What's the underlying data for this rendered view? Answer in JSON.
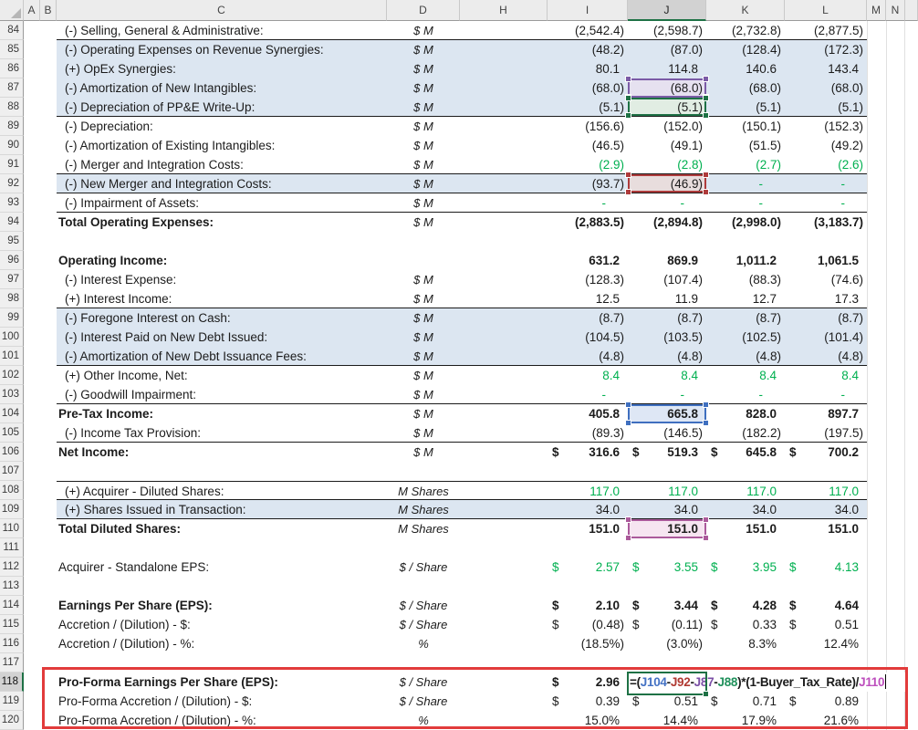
{
  "columns": [
    "A",
    "B",
    "C",
    "D",
    "H",
    "I",
    "J",
    "K",
    "L",
    "M",
    "N"
  ],
  "selected_column": "J",
  "active_row": "118",
  "rows": [
    {
      "num": "84",
      "label": "(-) Selling, General & Administrative:",
      "unit": "$ M",
      "values": [
        "(2,542.4)",
        "(2,598.7)",
        "(2,732.8)",
        "(2,877.5)"
      ],
      "bb": true
    },
    {
      "num": "85",
      "label": "(-) Operating Expenses on Revenue Synergies:",
      "unit": "$ M",
      "values": [
        "(48.2)",
        "(87.0)",
        "(128.4)",
        "(172.3)"
      ],
      "band": true
    },
    {
      "num": "86",
      "label": "(+) OpEx Synergies:",
      "unit": "$ M",
      "values": [
        "80.1",
        "114.8",
        "140.6",
        "143.4"
      ],
      "band": true
    },
    {
      "num": "87",
      "label": "(-) Amortization of New Intangibles:",
      "unit": "$ M",
      "values": [
        "(68.0)",
        "(68.0)",
        "(68.0)",
        "(68.0)"
      ],
      "band": true,
      "hl": "purple"
    },
    {
      "num": "88",
      "label": "(-) Depreciation of PP&E Write-Up:",
      "unit": "$ M",
      "values": [
        "(5.1)",
        "(5.1)",
        "(5.1)",
        "(5.1)"
      ],
      "band": true,
      "bb": true,
      "hl": "green"
    },
    {
      "num": "89",
      "label": "(-) Depreciation:",
      "unit": "$ M",
      "values": [
        "(156.6)",
        "(152.0)",
        "(150.1)",
        "(152.3)"
      ]
    },
    {
      "num": "90",
      "label": "(-) Amortization of Existing Intangibles:",
      "unit": "$ M",
      "values": [
        "(46.5)",
        "(49.1)",
        "(51.5)",
        "(49.2)"
      ]
    },
    {
      "num": "91",
      "label": "(-) Merger and Integration Costs:",
      "unit": "$ M",
      "values": [
        "(2.9)",
        "(2.8)",
        "(2.7)",
        "(2.6)"
      ],
      "green": true,
      "bb": true
    },
    {
      "num": "92",
      "label": "(-) New Merger and Integration Costs:",
      "unit": "$ M",
      "values": [
        "(93.7)",
        "(46.9)",
        "-",
        "-"
      ],
      "band": true,
      "bb": true,
      "hl": "red"
    },
    {
      "num": "93",
      "label": "(-) Impairment of Assets:",
      "unit": "$ M",
      "values": [
        "-",
        "-",
        "-",
        "-"
      ],
      "bb": true
    },
    {
      "num": "94",
      "label": "Total Operating Expenses:",
      "unit": "$ M",
      "values": [
        "(2,883.5)",
        "(2,894.8)",
        "(2,998.0)",
        "(3,183.7)"
      ],
      "bold": true
    },
    {
      "num": "95"
    },
    {
      "num": "96",
      "label": "Operating Income:",
      "unit": "",
      "values": [
        "631.2",
        "869.9",
        "1,011.2",
        "1,061.5"
      ],
      "bold": true
    },
    {
      "num": "97",
      "label": "(-) Interest Expense:",
      "unit": "$ M",
      "values": [
        "(128.3)",
        "(107.4)",
        "(88.3)",
        "(74.6)"
      ]
    },
    {
      "num": "98",
      "label": "(+) Interest Income:",
      "unit": "$ M",
      "values": [
        "12.5",
        "11.9",
        "12.7",
        "17.3"
      ],
      "bb": true
    },
    {
      "num": "99",
      "label": "(-) Foregone Interest on Cash:",
      "unit": "$ M",
      "values": [
        "(8.7)",
        "(8.7)",
        "(8.7)",
        "(8.7)"
      ],
      "band": true
    },
    {
      "num": "100",
      "label": "(-) Interest Paid on New Debt Issued:",
      "unit": "$ M",
      "values": [
        "(104.5)",
        "(103.5)",
        "(102.5)",
        "(101.4)"
      ],
      "band": true
    },
    {
      "num": "101",
      "label": "(-) Amortization of New Debt Issuance Fees:",
      "unit": "$ M",
      "values": [
        "(4.8)",
        "(4.8)",
        "(4.8)",
        "(4.8)"
      ],
      "band": true,
      "bb": true
    },
    {
      "num": "102",
      "label": "(+) Other Income, Net:",
      "unit": "$ M",
      "values": [
        "8.4",
        "8.4",
        "8.4",
        "8.4"
      ],
      "green": true
    },
    {
      "num": "103",
      "label": "(-) Goodwill Impairment:",
      "unit": "$ M",
      "values": [
        "-",
        "-",
        "-",
        "-"
      ],
      "bb": true
    },
    {
      "num": "104",
      "label": "Pre-Tax Income:",
      "unit": "$ M",
      "values": [
        "405.8",
        "665.8",
        "828.0",
        "897.7"
      ],
      "bold": true,
      "hl": "blue"
    },
    {
      "num": "105",
      "label": "(-) Income Tax Provision:",
      "unit": "$ M",
      "values": [
        "(89.3)",
        "(146.5)",
        "(182.2)",
        "(197.5)"
      ],
      "bb": true
    },
    {
      "num": "106",
      "label": "Net Income:",
      "unit": "$ M",
      "values": [
        "316.6",
        "519.3",
        "645.8",
        "700.2"
      ],
      "bold": true,
      "currency": true
    },
    {
      "num": "107"
    },
    {
      "num": "108",
      "label": "(+) Acquirer - Diluted Shares:",
      "unit": "M Shares",
      "values": [
        "117.0",
        "117.0",
        "117.0",
        "117.0"
      ],
      "green": true,
      "bt": true,
      "bb": true
    },
    {
      "num": "109",
      "label": "(+) Shares Issued in Transaction:",
      "unit": "M Shares",
      "values": [
        "34.0",
        "34.0",
        "34.0",
        "34.0"
      ],
      "band": true,
      "bb": true
    },
    {
      "num": "110",
      "label": "Total Diluted Shares:",
      "unit": "M Shares",
      "values": [
        "151.0",
        "151.0",
        "151.0",
        "151.0"
      ],
      "bold": true,
      "hl": "plum"
    },
    {
      "num": "111"
    },
    {
      "num": "112",
      "label": "Acquirer - Standalone EPS:",
      "unit": "$ / Share",
      "values": [
        "2.57",
        "3.55",
        "3.95",
        "4.13"
      ],
      "green": true,
      "currency": true
    },
    {
      "num": "113"
    },
    {
      "num": "114",
      "label": "Earnings Per Share (EPS):",
      "unit": "$ / Share",
      "values": [
        "2.10",
        "3.44",
        "4.28",
        "4.64"
      ],
      "bold": true,
      "currency": true
    },
    {
      "num": "115",
      "label": "Accretion / (Dilution) - $:",
      "unit": "$ / Share",
      "values": [
        "(0.48)",
        "(0.11)",
        "0.33",
        "0.51"
      ],
      "currency": true
    },
    {
      "num": "116",
      "label": "Accretion / (Dilution) - %:",
      "unit": "%",
      "values": [
        "(18.5%)",
        "(3.0%)",
        "8.3%",
        "12.4%"
      ]
    },
    {
      "num": "117"
    },
    {
      "num": "118",
      "label": "Pro-Forma Earnings Per Share (EPS):",
      "unit": "$ / Share",
      "values": [
        "2.96",
        "",
        "",
        ""
      ],
      "bold": true,
      "currency": true,
      "editing": true
    },
    {
      "num": "119",
      "label": "Pro-Forma Accretion / (Dilution) - $:",
      "unit": "$ / Share",
      "values": [
        "0.39",
        "0.51",
        "0.71",
        "0.89"
      ],
      "currency": true
    },
    {
      "num": "120",
      "label": "Pro-Forma Accretion / (Dilution) - %:",
      "unit": "%",
      "values": [
        "15.0%",
        "14.4%",
        "17.9%",
        "21.6%"
      ]
    }
  ],
  "formula": {
    "cell": "J118",
    "text": "=(J104-J92-J87-J88)*(1-Buyer_Tax_Rate)/J110",
    "parts": [
      {
        "t": "=(",
        "c": "k"
      },
      {
        "t": "J104",
        "c": "blue"
      },
      {
        "t": "-",
        "c": "k"
      },
      {
        "t": "J92",
        "c": "red"
      },
      {
        "t": "-",
        "c": "k"
      },
      {
        "t": "J87",
        "c": "purple"
      },
      {
        "t": "-",
        "c": "k"
      },
      {
        "t": "J88",
        "c": "green"
      },
      {
        "t": ")*(1-Buyer_Tax_Rate)/",
        "c": "k"
      },
      {
        "t": "J110",
        "c": "magenta"
      }
    ]
  },
  "colors": {
    "band_fill": "#DCE6F1",
    "green_text": "#00B050",
    "red_outline": "#E23B3B",
    "edit_cell_border": "#1E7145",
    "ref_blue": "#4472C4",
    "ref_red": "#B03A32",
    "ref_purple": "#7B4FA6",
    "ref_green": "#21915C",
    "ref_magenta": "#BD4FBD"
  }
}
